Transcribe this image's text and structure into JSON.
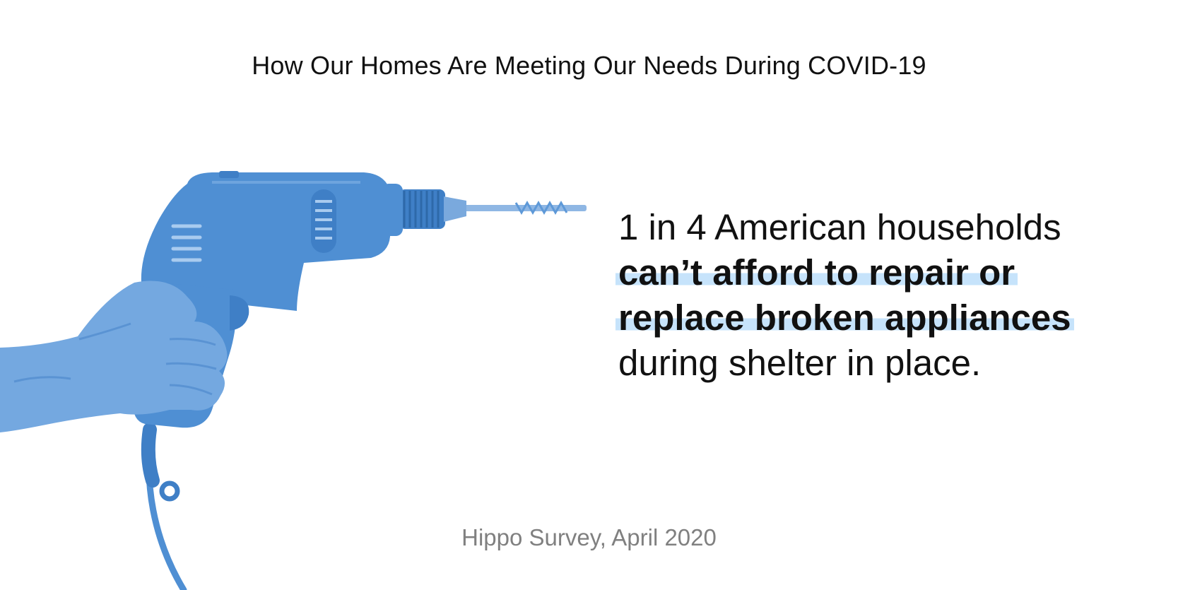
{
  "header": {
    "title": "How Our Homes Are Meeting Our Needs During COVID-19"
  },
  "stat": {
    "line1": "1 in 4 American households",
    "highlight_line1": "can’t afford to repair or",
    "highlight_line2": "replace broken appliances",
    "line4": "during shelter in place."
  },
  "footer": {
    "source": "Hippo Survey, April 2020"
  },
  "illustration": {
    "icon": "power-drill-in-hand-icon",
    "tint_color": "#4f8fd3"
  },
  "colors": {
    "highlight": "#c6e3fb",
    "text": "#111111",
    "muted": "#808080"
  }
}
